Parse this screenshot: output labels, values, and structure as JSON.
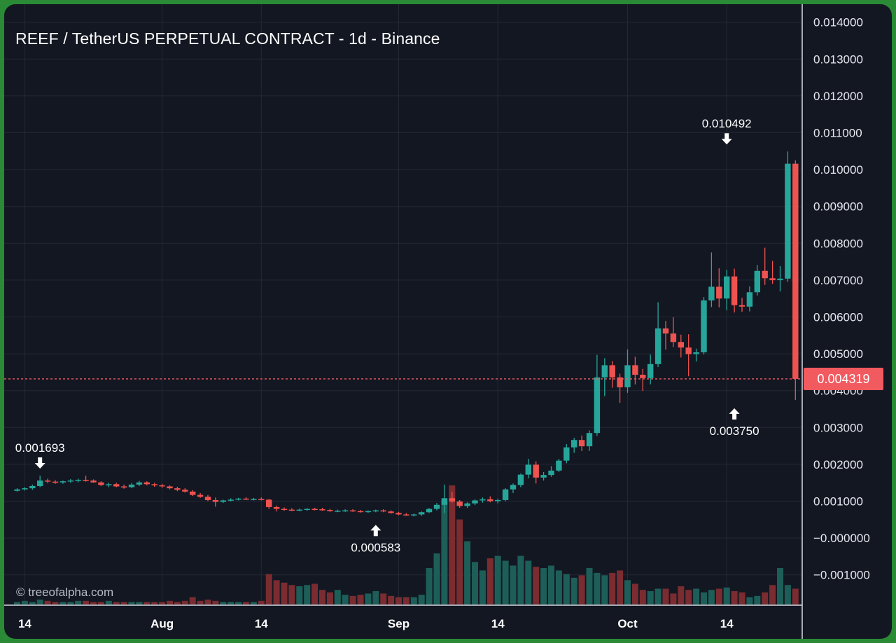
{
  "title": "REEF / TetherUS PERPETUAL CONTRACT - 1d - Binance",
  "watermark": "© treeofalpha.com",
  "current_price_label": "0.004319",
  "colors": {
    "background": "#131722",
    "up": "#26a69a",
    "down": "#ef5350",
    "grid": "#242835",
    "text": "#ffffff",
    "outer": "#2a8a35"
  },
  "chart_data": {
    "type": "candlestick",
    "title": "REEF / TetherUS PERPETUAL CONTRACT - 1d - Binance",
    "interval": "1d",
    "exchange": "Binance",
    "x_start": "2023-07-13",
    "x_ticks": [
      "14",
      "Aug",
      "14",
      "Sep",
      "14",
      "Oct",
      "14"
    ],
    "x_tick_dates": [
      "2023-07-14",
      "2023-08-01",
      "2023-08-14",
      "2023-09-01",
      "2023-09-14",
      "2023-10-01",
      "2023-10-14"
    ],
    "y_ticks": [
      "0.014000",
      "0.013000",
      "0.012000",
      "0.011000",
      "0.010000",
      "0.009000",
      "0.008000",
      "0.007000",
      "0.006000",
      "0.005000",
      "0.004000",
      "0.003000",
      "0.002000",
      "0.001000",
      "−0.000000",
      "−0.001000"
    ],
    "ylim": [
      -0.0018,
      0.0145
    ],
    "grid": true,
    "current_price": 0.004319,
    "annotations": [
      {
        "text": "0.001693",
        "type": "high",
        "date": "2023-07-16",
        "value": 0.001693
      },
      {
        "text": "0.000583",
        "type": "low",
        "date": "2023-08-29",
        "value": 0.000583
      },
      {
        "text": "0.010492",
        "type": "high",
        "date": "2023-10-14",
        "value": 0.010492
      },
      {
        "text": "0.003750",
        "type": "low",
        "date": "2023-10-15",
        "value": 0.00375
      }
    ],
    "ohlc_columns": [
      "open",
      "high",
      "low",
      "close"
    ],
    "ohlc": [
      [
        0.00128,
        0.00135,
        0.00126,
        0.00132
      ],
      [
        0.00132,
        0.00138,
        0.00129,
        0.00135
      ],
      [
        0.00135,
        0.00145,
        0.00131,
        0.00141
      ],
      [
        0.00141,
        0.001693,
        0.00138,
        0.00156
      ],
      [
        0.00156,
        0.00161,
        0.00149,
        0.00153
      ],
      [
        0.00153,
        0.00157,
        0.00147,
        0.00151
      ],
      [
        0.00151,
        0.00156,
        0.00147,
        0.00154
      ],
      [
        0.00154,
        0.0016,
        0.0015,
        0.00156
      ],
      [
        0.00156,
        0.00161,
        0.00151,
        0.00158
      ],
      [
        0.00158,
        0.00169,
        0.00153,
        0.00156
      ],
      [
        0.00156,
        0.00159,
        0.0015,
        0.00151
      ],
      [
        0.00151,
        0.00154,
        0.00141,
        0.00144
      ],
      [
        0.00144,
        0.0015,
        0.00138,
        0.00146
      ],
      [
        0.00146,
        0.0015,
        0.00138,
        0.0014
      ],
      [
        0.0014,
        0.00145,
        0.00134,
        0.00138
      ],
      [
        0.00138,
        0.00149,
        0.00135,
        0.00145
      ],
      [
        0.00145,
        0.00155,
        0.00141,
        0.00151
      ],
      [
        0.00151,
        0.00154,
        0.00143,
        0.00146
      ],
      [
        0.00146,
        0.0015,
        0.00139,
        0.00143
      ],
      [
        0.00143,
        0.00147,
        0.00136,
        0.0014
      ],
      [
        0.0014,
        0.00143,
        0.00132,
        0.00135
      ],
      [
        0.00135,
        0.00139,
        0.00127,
        0.00131
      ],
      [
        0.00131,
        0.00135,
        0.00123,
        0.00126
      ],
      [
        0.00126,
        0.0013,
        0.00114,
        0.00117
      ],
      [
        0.00117,
        0.00122,
        0.00109,
        0.00112
      ],
      [
        0.00112,
        0.00117,
        0.001,
        0.00103
      ],
      [
        0.00103,
        0.0011,
        0.00085,
        0.00098
      ],
      [
        0.00098,
        0.00104,
        0.00095,
        0.00102
      ],
      [
        0.00102,
        0.00108,
        0.00099,
        0.00104
      ],
      [
        0.00104,
        0.00109,
        0.00102,
        0.00107
      ],
      [
        0.00107,
        0.00111,
        0.00103,
        0.00105
      ],
      [
        0.00105,
        0.00109,
        0.00102,
        0.00106
      ],
      [
        0.00106,
        0.0011,
        0.00102,
        0.00104
      ],
      [
        0.00104,
        0.00106,
        0.00079,
        0.00084
      ],
      [
        0.00084,
        0.00088,
        0.00072,
        0.00079
      ],
      [
        0.00079,
        0.00083,
        0.00074,
        0.00077
      ],
      [
        0.00077,
        0.00081,
        0.00073,
        0.00076
      ],
      [
        0.00076,
        0.0008,
        0.00073,
        0.00077
      ],
      [
        0.00077,
        0.00081,
        0.00074,
        0.00079
      ],
      [
        0.00079,
        0.00082,
        0.00075,
        0.00078
      ],
      [
        0.00078,
        0.00082,
        0.00074,
        0.00076
      ],
      [
        0.00076,
        0.00079,
        0.00071,
        0.00073
      ],
      [
        0.00073,
        0.00077,
        0.0007,
        0.00074
      ],
      [
        0.00074,
        0.00078,
        0.00071,
        0.00075
      ],
      [
        0.00075,
        0.00078,
        0.00071,
        0.00073
      ],
      [
        0.00073,
        0.00076,
        0.00069,
        0.00071
      ],
      [
        0.00071,
        0.00075,
        0.00068,
        0.00073
      ],
      [
        0.00073,
        0.00077,
        0.0007,
        0.00075
      ],
      [
        0.00075,
        0.00078,
        0.0007,
        0.00072
      ],
      [
        0.00072,
        0.00075,
        0.00066,
        0.00068
      ],
      [
        0.00068,
        0.00071,
        0.00062,
        0.00064
      ],
      [
        0.00064,
        0.00068,
        0.0006,
        0.00062
      ],
      [
        0.00062,
        0.00066,
        0.000583,
        0.00064
      ],
      [
        0.00064,
        0.00072,
        0.0006,
        0.0007
      ],
      [
        0.0007,
        0.00081,
        0.00068,
        0.00079
      ],
      [
        0.00079,
        0.00095,
        0.00075,
        0.0009
      ],
      [
        0.0009,
        0.00145,
        0.00068,
        0.00108
      ],
      [
        0.00108,
        0.00125,
        0.00096,
        0.00099
      ],
      [
        0.00099,
        0.00103,
        0.00082,
        0.00087
      ],
      [
        0.00087,
        0.00097,
        0.00082,
        0.00094
      ],
      [
        0.00094,
        0.00105,
        0.00089,
        0.00102
      ],
      [
        0.00102,
        0.0011,
        0.00096,
        0.00105
      ],
      [
        0.00105,
        0.00113,
        0.00097,
        0.001
      ],
      [
        0.001,
        0.00107,
        0.00094,
        0.00103
      ],
      [
        0.00103,
        0.00135,
        0.001,
        0.00132
      ],
      [
        0.00132,
        0.00148,
        0.00122,
        0.00144
      ],
      [
        0.00144,
        0.00175,
        0.00138,
        0.00172
      ],
      [
        0.00172,
        0.00215,
        0.00162,
        0.00199
      ],
      [
        0.00199,
        0.00208,
        0.00148,
        0.00164
      ],
      [
        0.00164,
        0.00179,
        0.00156,
        0.00171
      ],
      [
        0.00171,
        0.00195,
        0.00166,
        0.00183
      ],
      [
        0.00183,
        0.00215,
        0.00179,
        0.0021
      ],
      [
        0.0021,
        0.00255,
        0.00203,
        0.00246
      ],
      [
        0.00246,
        0.00272,
        0.00231,
        0.00266
      ],
      [
        0.00266,
        0.00278,
        0.00236,
        0.00249
      ],
      [
        0.00249,
        0.00292,
        0.00236,
        0.00285
      ],
      [
        0.00285,
        0.00497,
        0.00277,
        0.00436
      ],
      [
        0.00436,
        0.00488,
        0.00385,
        0.00469
      ],
      [
        0.00469,
        0.0048,
        0.00408,
        0.00436
      ],
      [
        0.00436,
        0.00446,
        0.00367,
        0.00409
      ],
      [
        0.00409,
        0.00512,
        0.00394,
        0.00469
      ],
      [
        0.00469,
        0.00492,
        0.00417,
        0.00443
      ],
      [
        0.00443,
        0.00459,
        0.00399,
        0.00434
      ],
      [
        0.00434,
        0.00498,
        0.00417,
        0.00472
      ],
      [
        0.00472,
        0.0064,
        0.00464,
        0.00569
      ],
      [
        0.00569,
        0.00589,
        0.00511,
        0.00555
      ],
      [
        0.00555,
        0.00599,
        0.00518,
        0.00532
      ],
      [
        0.00532,
        0.00552,
        0.0049,
        0.00517
      ],
      [
        0.00517,
        0.00553,
        0.00439,
        0.00499
      ],
      [
        0.00499,
        0.00514,
        0.00479,
        0.00504
      ],
      [
        0.00504,
        0.00654,
        0.00498,
        0.00645
      ],
      [
        0.00645,
        0.00775,
        0.00627,
        0.00682
      ],
      [
        0.00682,
        0.00732,
        0.00626,
        0.0065
      ],
      [
        0.0065,
        0.00728,
        0.00618,
        0.0071
      ],
      [
        0.0071,
        0.00731,
        0.00612,
        0.00632
      ],
      [
        0.00632,
        0.00652,
        0.00614,
        0.00628
      ],
      [
        0.00628,
        0.00683,
        0.00615,
        0.00667
      ],
      [
        0.00667,
        0.00741,
        0.00658,
        0.00725
      ],
      [
        0.00725,
        0.00788,
        0.00687,
        0.00705
      ],
      [
        0.00705,
        0.00752,
        0.0069,
        0.007
      ],
      [
        0.007,
        0.00738,
        0.00669,
        0.00704
      ],
      [
        0.00704,
        0.010492,
        0.00695,
        0.01016
      ],
      [
        0.01016,
        0.01025,
        0.00375,
        0.004319
      ]
    ],
    "volume": [
      0.02,
      0.03,
      0.02,
      0.04,
      0.03,
      0.02,
      0.02,
      0.02,
      0.03,
      0.03,
      0.02,
      0.02,
      0.03,
      0.02,
      0.02,
      0.02,
      0.02,
      0.02,
      0.02,
      0.02,
      0.03,
      0.02,
      0.03,
      0.06,
      0.03,
      0.04,
      0.03,
      0.02,
      0.02,
      0.02,
      0.02,
      0.02,
      0.03,
      0.25,
      0.2,
      0.18,
      0.16,
      0.15,
      0.16,
      0.17,
      0.12,
      0.1,
      0.12,
      0.08,
      0.07,
      0.08,
      0.09,
      0.11,
      0.09,
      0.07,
      0.06,
      0.06,
      0.06,
      0.08,
      0.3,
      0.42,
      0.85,
      0.98,
      0.7,
      0.52,
      0.35,
      0.28,
      0.38,
      0.4,
      0.36,
      0.32,
      0.4,
      0.36,
      0.31,
      0.3,
      0.32,
      0.28,
      0.25,
      0.22,
      0.24,
      0.3,
      0.26,
      0.24,
      0.26,
      0.28,
      0.2,
      0.17,
      0.12,
      0.11,
      0.13,
      0.13,
      0.09,
      0.15,
      0.12,
      0.13,
      0.1,
      0.12,
      0.13,
      0.14,
      0.11,
      0.1,
      0.06,
      0.07,
      0.1,
      0.16,
      0.3,
      0.16,
      0.13
    ],
    "volume_up": [
      true,
      true,
      true,
      true,
      false,
      false,
      true,
      true,
      true,
      false,
      false,
      false,
      true,
      false,
      false,
      true,
      true,
      false,
      false,
      false,
      false,
      false,
      false,
      false,
      false,
      false,
      false,
      true,
      true,
      true,
      false,
      true,
      false,
      false,
      false,
      false,
      false,
      true,
      true,
      false,
      false,
      false,
      true,
      true,
      false,
      false,
      true,
      true,
      false,
      false,
      false,
      false,
      true,
      true,
      true,
      true,
      true,
      false,
      false,
      true,
      true,
      true,
      false,
      true,
      true,
      true,
      true,
      true,
      false,
      true,
      true,
      true,
      true,
      true,
      false,
      true,
      true,
      true,
      false,
      false,
      true,
      false,
      false,
      true,
      true,
      false,
      false,
      false,
      false,
      true,
      true,
      true,
      false,
      true,
      false,
      false,
      true,
      true,
      false,
      false,
      true,
      true,
      false
    ]
  }
}
